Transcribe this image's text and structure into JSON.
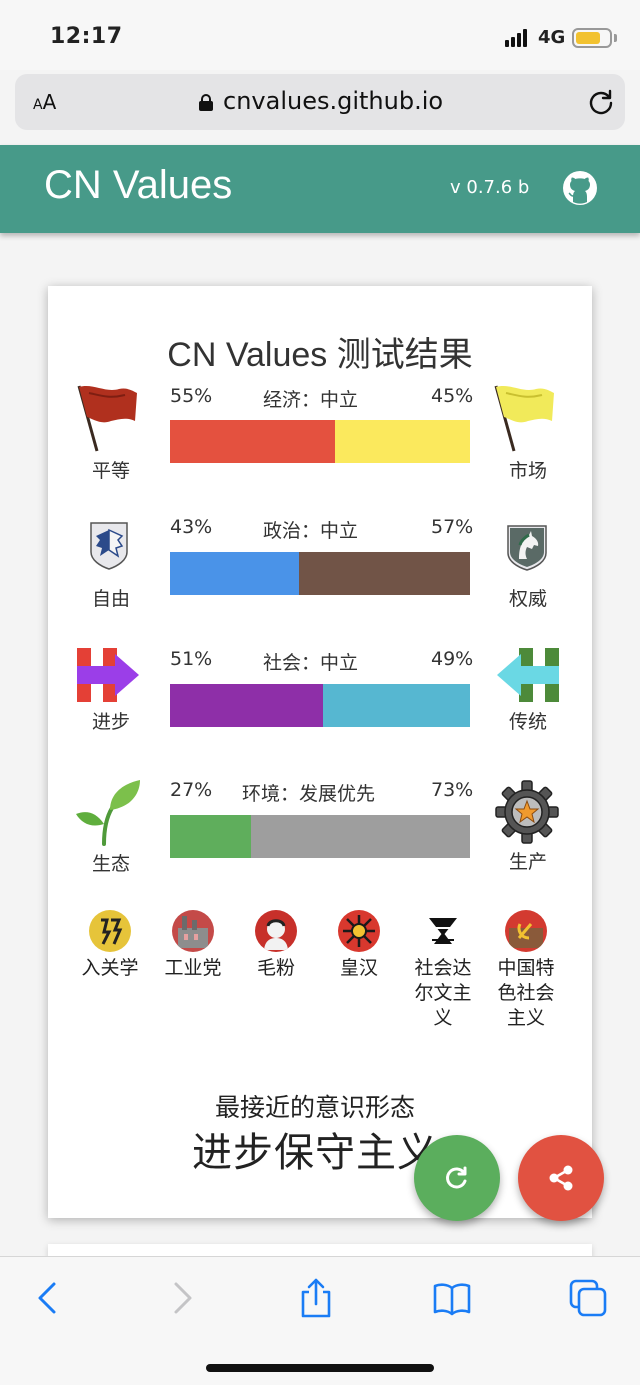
{
  "status_bar": {
    "time": "12:17",
    "network": "4G"
  },
  "browser": {
    "aa_label_small": "A",
    "aa_label": "A",
    "url": "cnvalues.github.io"
  },
  "header": {
    "title": "CN Values",
    "version": "v 0.7.6 b"
  },
  "result": {
    "title": "CN Values 测试结果",
    "axes": [
      {
        "left_label": "平等",
        "right_label": "市场",
        "left_pct": "55%",
        "right_pct": "45%",
        "axis_label": "经济：中立",
        "left_value": 55,
        "left_color": "#e4513f",
        "right_color": "#fbe95d",
        "left_icon": "red-flag-icon",
        "right_icon": "yellow-flag-icon"
      },
      {
        "left_label": "自由",
        "right_label": "权威",
        "left_pct": "43%",
        "right_pct": "57%",
        "axis_label": "政治：中立",
        "left_value": 43,
        "left_color": "#4a93e8",
        "right_color": "#715447",
        "left_icon": "wings-emblem-icon",
        "right_icon": "horse-emblem-icon"
      },
      {
        "left_label": "进步",
        "right_label": "传统",
        "left_pct": "51%",
        "right_pct": "49%",
        "axis_label": "社会：中立",
        "left_value": 51,
        "left_color": "#8e2fa8",
        "right_color": "#56b7d1",
        "left_icon": "h-arrow-right-icon",
        "right_icon": "h-arrow-left-icon"
      },
      {
        "left_label": "生态",
        "right_label": "生产",
        "left_pct": "27%",
        "right_pct": "73%",
        "axis_label": "环境：发展优先",
        "left_value": 27,
        "left_color": "#5fae5c",
        "right_color": "#9e9e9e",
        "left_icon": "sprout-icon",
        "right_icon": "gear-star-icon"
      }
    ],
    "ideologies": [
      {
        "label": "入关学",
        "icon": "ruguan-icon"
      },
      {
        "label": "工业党",
        "icon": "industry-icon"
      },
      {
        "label": "毛粉",
        "icon": "mao-portrait-icon"
      },
      {
        "label": "皇汉",
        "icon": "han-emblem-icon"
      },
      {
        "label": "社会达尔文主义",
        "icon": "pyramid-icon"
      },
      {
        "label": "中国特色社会主义",
        "icon": "hammer-sickle-icon"
      }
    ],
    "closest_caption": "最接近的意识形态",
    "closest_value": "进步保守主义"
  },
  "colors": {
    "header_bg": "#479a89",
    "retry_fab": "#5bae5d",
    "share_fab": "#e15241",
    "ios_blue": "#1a7cf5"
  }
}
